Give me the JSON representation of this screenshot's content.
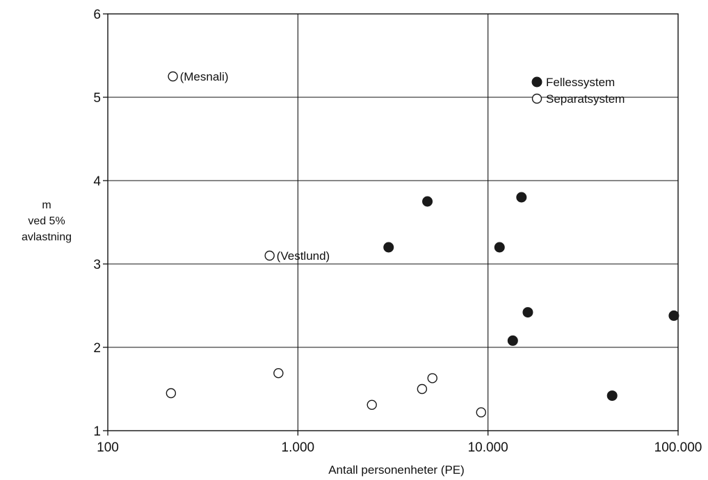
{
  "chart_data": {
    "type": "scatter",
    "xscale": "log",
    "xlim": [
      100,
      100000
    ],
    "ylim": [
      1,
      6
    ],
    "grid": true,
    "title": "",
    "xlabel": "Antall personenheter (PE)",
    "ylabel_lines": [
      "m",
      "ved 5%",
      "avlastning"
    ],
    "x_tick_labels": [
      "100",
      "1.000",
      "10.000",
      "100.000"
    ],
    "x_tick_values": [
      100,
      1000,
      10000,
      100000
    ],
    "y_ticks": [
      1,
      2,
      3,
      4,
      5,
      6
    ],
    "legend_position": "top-right",
    "series": [
      {
        "name": "Fellessystem",
        "marker": "filled-circle",
        "points": [
          {
            "x": 3000,
            "y": 3.2
          },
          {
            "x": 4800,
            "y": 3.75
          },
          {
            "x": 11500,
            "y": 3.2
          },
          {
            "x": 15000,
            "y": 3.8
          },
          {
            "x": 16200,
            "y": 2.42
          },
          {
            "x": 13500,
            "y": 2.08
          },
          {
            "x": 45000,
            "y": 1.42
          },
          {
            "x": 95000,
            "y": 2.38
          }
        ]
      },
      {
        "name": "Separatsystem",
        "marker": "open-circle",
        "points": [
          {
            "x": 220,
            "y": 5.25
          },
          {
            "x": 710,
            "y": 3.1
          },
          {
            "x": 215,
            "y": 1.45
          },
          {
            "x": 790,
            "y": 1.69
          },
          {
            "x": 2450,
            "y": 1.31
          },
          {
            "x": 4500,
            "y": 1.5
          },
          {
            "x": 5100,
            "y": 1.63
          },
          {
            "x": 9200,
            "y": 1.22
          }
        ]
      }
    ],
    "annotations": [
      {
        "text": "(Mesnali)",
        "x": 220,
        "y": 5.25
      },
      {
        "text": "(Vestlund)",
        "x": 710,
        "y": 3.1
      }
    ]
  }
}
